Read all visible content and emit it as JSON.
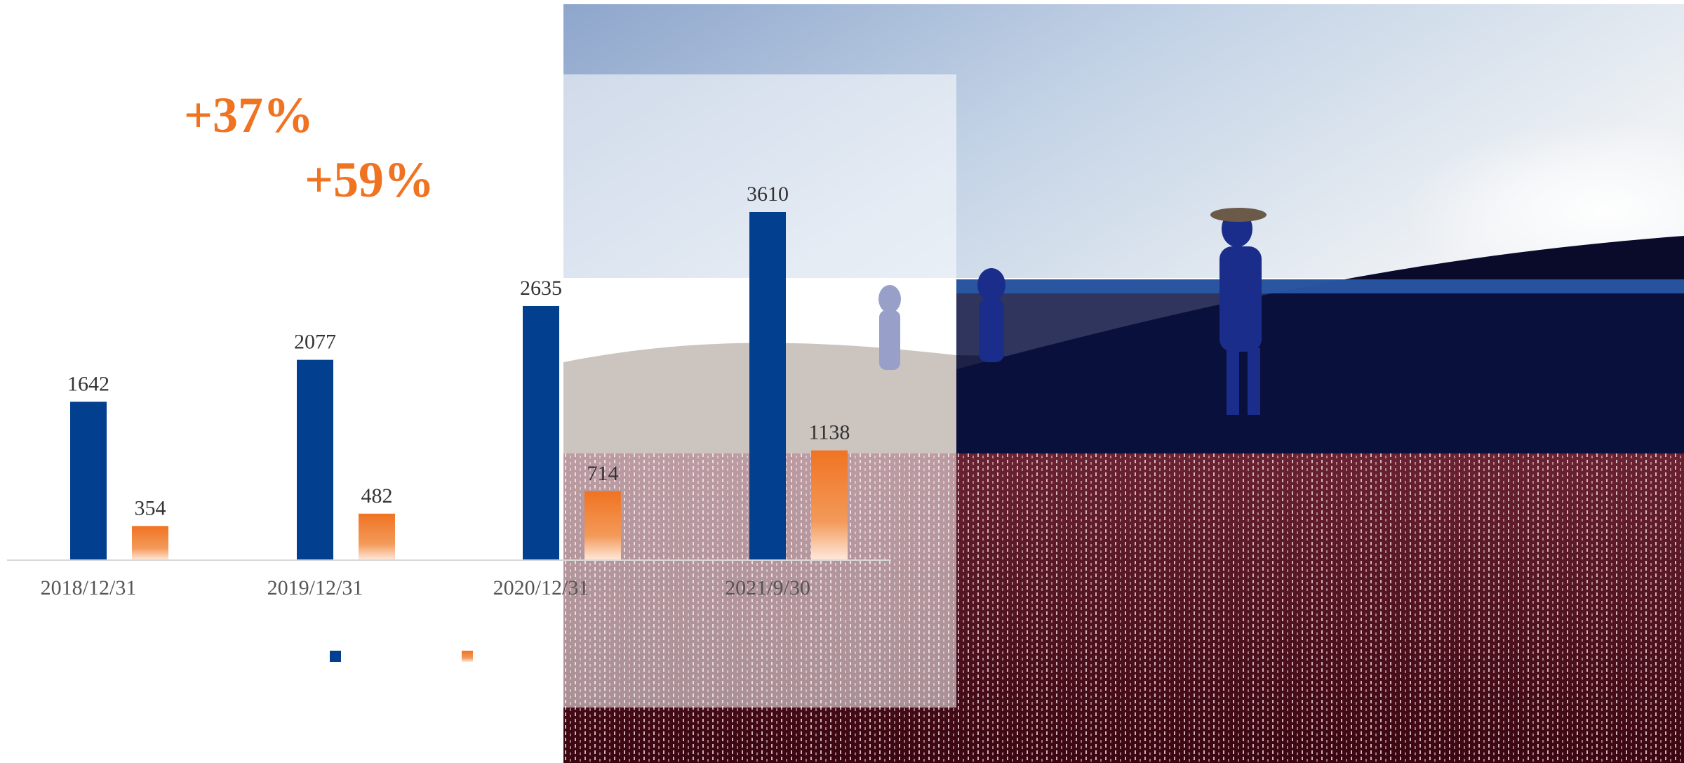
{
  "colors": {
    "series_a": "#033f8f",
    "series_b": "#f07322",
    "axis": "#d8d8d8",
    "growth_text": "#f07322"
  },
  "growth_labels": [
    "+37%",
    "+59%"
  ],
  "photo": {
    "description_icon": "desert-hikers-photo"
  },
  "chart_data": {
    "type": "bar",
    "categories": [
      "2018/12/31",
      "2019/12/31",
      "2020/12/31",
      "2021/9/30"
    ],
    "series": [
      {
        "values": [
          1642,
          2077,
          2635,
          3610
        ]
      },
      {
        "values": [
          354,
          482,
          714,
          1138
        ]
      }
    ],
    "ylim": [
      0,
      4000
    ],
    "grid": false,
    "legend": "bottom-center"
  }
}
